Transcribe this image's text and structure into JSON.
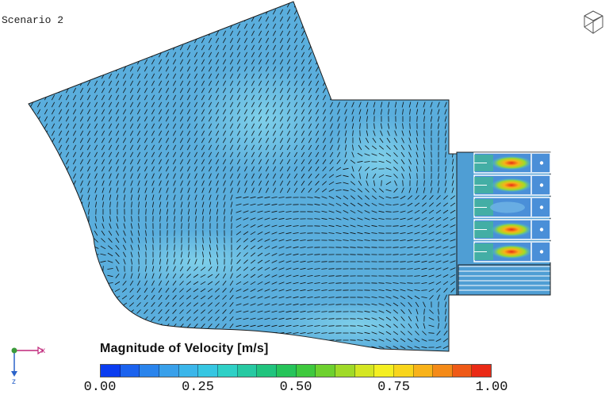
{
  "scenario": {
    "label": "Scenario 2"
  },
  "legend": {
    "title": "Magnitude of Velocity [m/s]",
    "ticks": [
      "0.00",
      "0.25",
      "0.50",
      "0.75",
      "1.00"
    ],
    "colors": [
      "#0a3cf0",
      "#1b62ee",
      "#2a84ec",
      "#39a0ea",
      "#3bb6ea",
      "#36c6e2",
      "#2fd0c6",
      "#27c9a2",
      "#21c47e",
      "#26c45a",
      "#3fc93e",
      "#6ed12f",
      "#a0da28",
      "#d4e623",
      "#f4ef22",
      "#f8d51c",
      "#f8b21a",
      "#f48a18",
      "#ef5a17",
      "#ea2a16"
    ]
  },
  "axes": {
    "x_label": "x",
    "z_label": "z"
  },
  "colors": {
    "domain_fill": "#5aaedd",
    "domain_light": "#74c6e6",
    "vector": "#111111",
    "outline": "#1a1a1a",
    "jet_core": "#ea2a16"
  },
  "icons": {
    "view_cube": "view-cube-icon",
    "axis_triad": "axis-triad-icon"
  }
}
